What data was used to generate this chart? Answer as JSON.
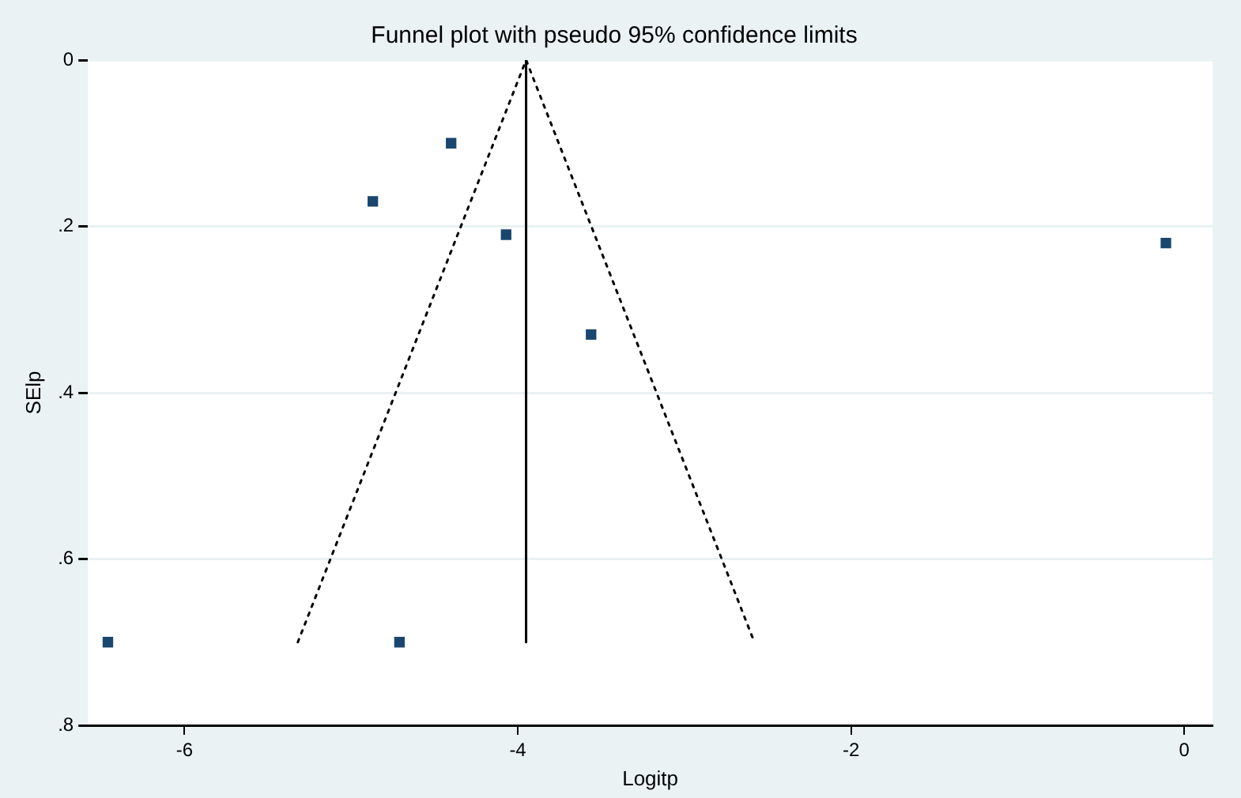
{
  "chart_data": {
    "type": "scatter",
    "title": "Funnel plot with pseudo 95% confidence limits",
    "xlabel": "Logitp",
    "ylabel": "SElp",
    "xlim": [
      -6.58,
      0.17
    ],
    "xticks": [
      -6,
      -4,
      -2,
      0
    ],
    "ylim": [
      0.8,
      0
    ],
    "yticks": [
      0,
      {
        "value": 0.2,
        "label": ".2"
      },
      {
        "value": 0.4,
        "label": ".4"
      },
      {
        "value": 0.6,
        "label": ".6"
      },
      {
        "value": 0.8,
        "label": ".8"
      }
    ],
    "grid": "y",
    "legend": false,
    "marker": "square",
    "series": [
      {
        "color": "#1a476f",
        "x": [
          -4.4,
          -4.87,
          -4.07,
          -0.11,
          -3.56,
          -6.46,
          -4.71
        ],
        "values": [
          0.1,
          0.17,
          0.21,
          0.22,
          0.33,
          0.7,
          0.7
        ]
      },
      {
        "type": "line",
        "color": "#000000",
        "line_style": "dotted",
        "marker": "none",
        "x": [
          -5.32,
          -3.95,
          -2.58
        ],
        "values": [
          0.7,
          0,
          0.7
        ]
      },
      {
        "type": "line",
        "color": "#000000",
        "line_style": "solid",
        "marker": "none",
        "x": [
          -3.95,
          -3.95
        ],
        "values": [
          0,
          0.7
        ]
      }
    ]
  }
}
